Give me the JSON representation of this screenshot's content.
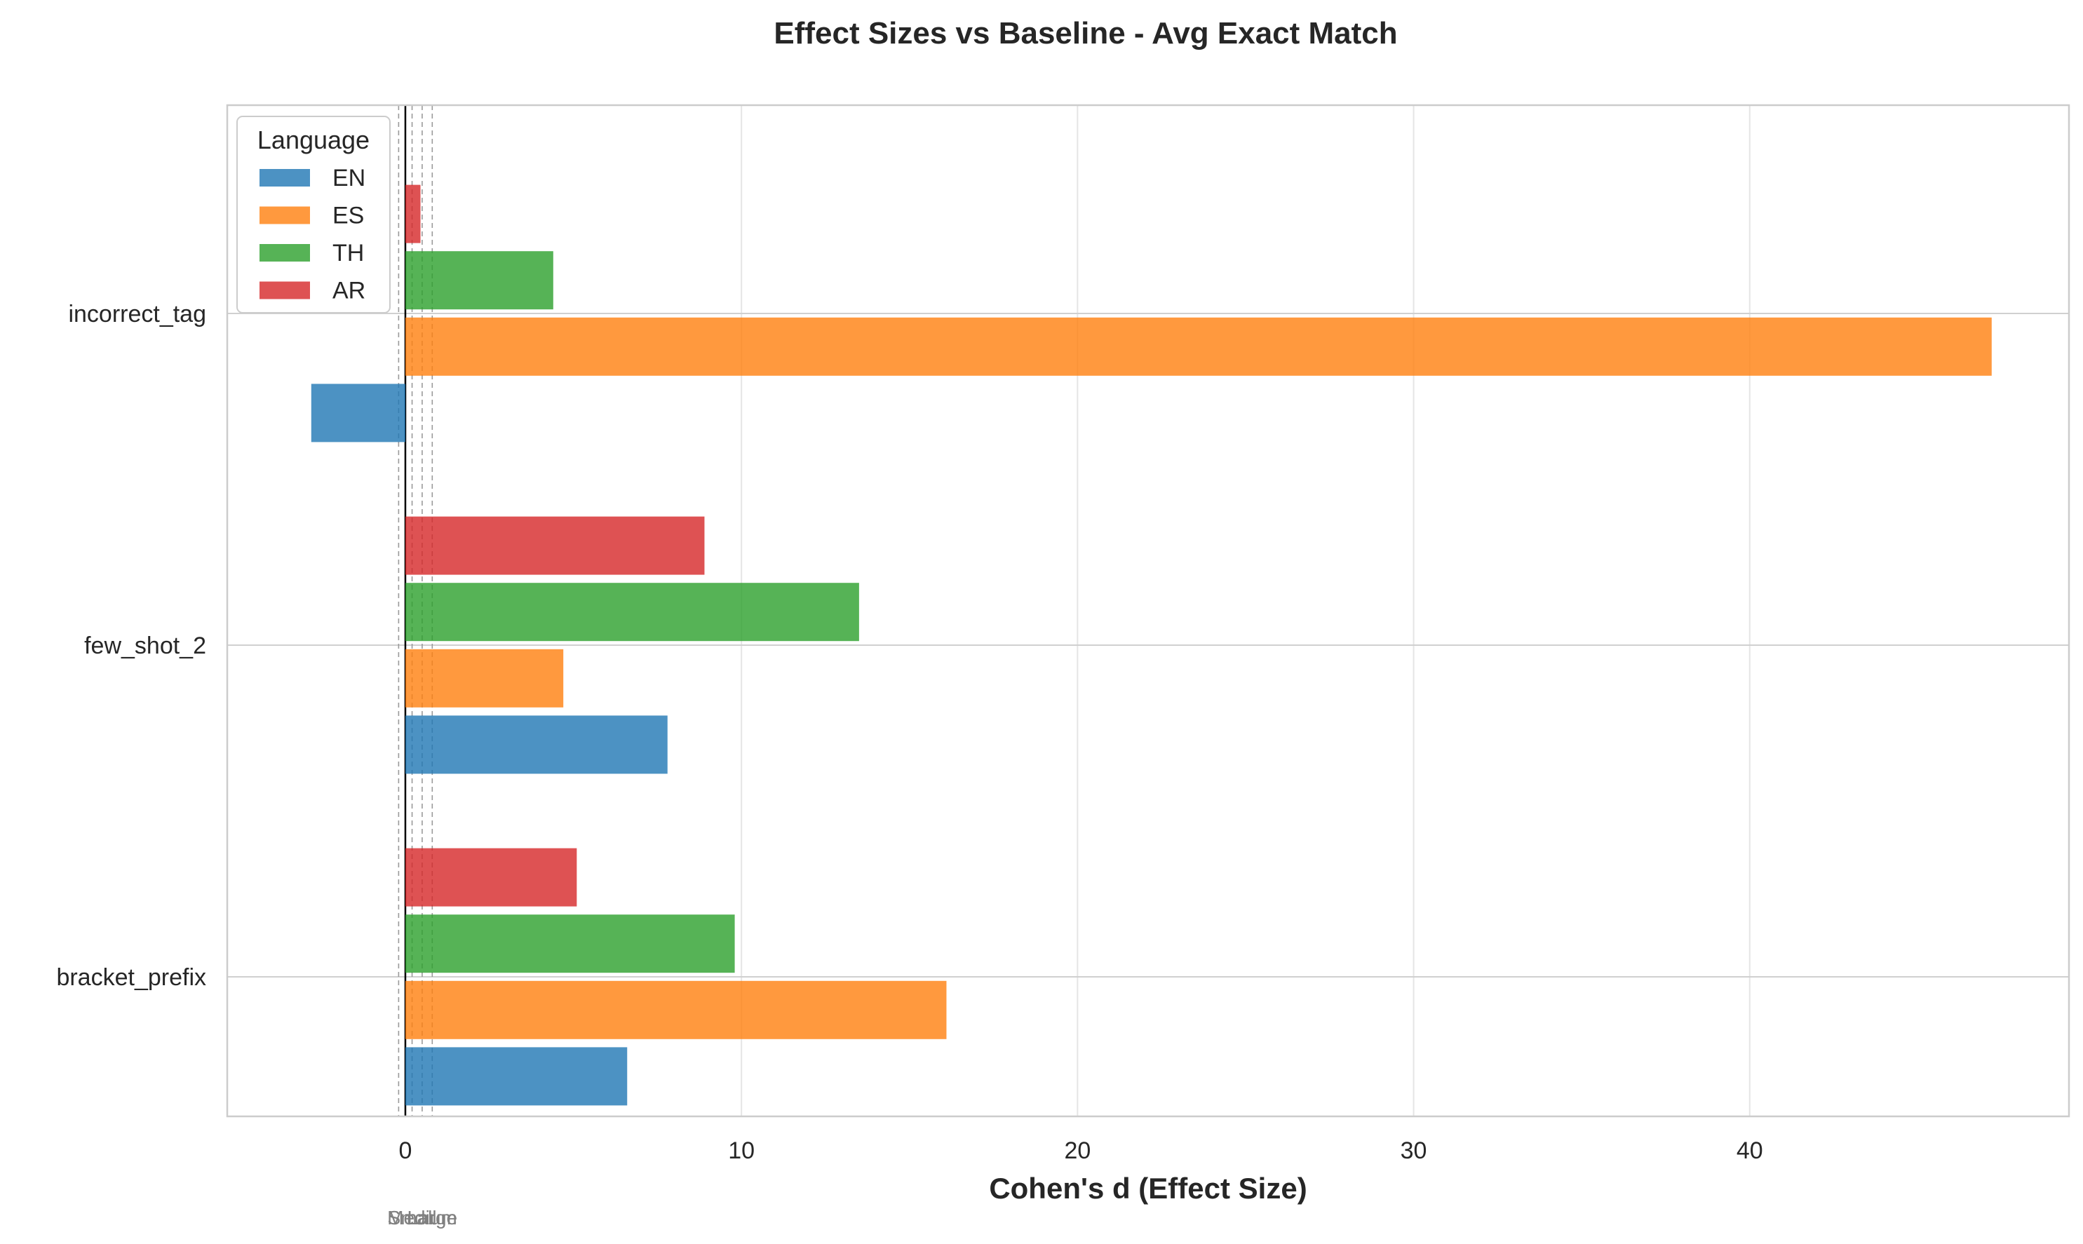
{
  "chart_data": {
    "type": "bar",
    "orientation": "horizontal",
    "title": "Effect Sizes vs Baseline - Avg Exact Match",
    "xlabel": "Cohen's d (Effect Size)",
    "ylabel": "",
    "categories": [
      "bracket_prefix",
      "few_shot_2",
      "incorrect_tag"
    ],
    "x_ticks": [
      0,
      10,
      20,
      30,
      40
    ],
    "xlim": [
      -5.3,
      49.5
    ],
    "grid": true,
    "legend": {
      "title": "Language",
      "placement": "top-left"
    },
    "series": [
      {
        "name": "EN",
        "color": "#1f77b4",
        "values": [
          6.6,
          7.8,
          -2.8
        ]
      },
      {
        "name": "ES",
        "color": "#ff7f0e",
        "values": [
          16.1,
          4.7,
          47.2
        ]
      },
      {
        "name": "TH",
        "color": "#2ca02c",
        "values": [
          9.8,
          13.5,
          4.4
        ]
      },
      {
        "name": "AR",
        "color": "#d62728",
        "values": [
          5.1,
          8.9,
          0.45
        ]
      }
    ],
    "reference_lines": [
      {
        "value": 0,
        "label": ""
      },
      {
        "value": -0.2,
        "label": "Small"
      },
      {
        "value": 0.2,
        "label": "Small"
      },
      {
        "value": 0.5,
        "label": "Medium"
      },
      {
        "value": 0.8,
        "label": "Large"
      }
    ]
  }
}
